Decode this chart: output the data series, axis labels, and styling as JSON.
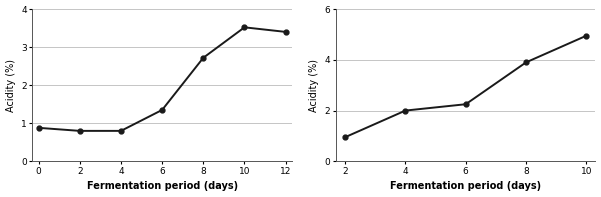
{
  "left": {
    "x": [
      0,
      2,
      4,
      6,
      8,
      10,
      12
    ],
    "y": [
      0.88,
      0.8,
      0.8,
      1.35,
      2.72,
      3.52,
      3.4
    ],
    "xlabel": "Fermentation period (days)",
    "ylabel": "Acidity (%)",
    "xlim": [
      -0.3,
      12.3
    ],
    "ylim": [
      0,
      4
    ],
    "xticks": [
      0,
      2,
      4,
      6,
      8,
      10,
      12
    ],
    "yticks": [
      0,
      1,
      2,
      3,
      4
    ]
  },
  "right": {
    "x": [
      2,
      4,
      6,
      8,
      10
    ],
    "y": [
      0.95,
      2.0,
      2.25,
      3.9,
      4.95
    ],
    "xlabel": "Fermentation period (days)",
    "ylabel": "Acidity (%)",
    "xlim": [
      1.7,
      10.3
    ],
    "ylim": [
      0,
      6
    ],
    "xticks": [
      2,
      4,
      6,
      8,
      10
    ],
    "yticks": [
      0,
      2,
      4,
      6
    ]
  },
  "line_color": "#1a1a1a",
  "marker": "o",
  "markersize": 3.5,
  "linewidth": 1.4,
  "xlabel_fontsize": 7,
  "ylabel_fontsize": 7,
  "tick_fontsize": 6.5,
  "xlabel_fontweight": "bold",
  "grid_color": "#bbbbbb",
  "grid_linewidth": 0.6,
  "background_color": "#ffffff"
}
